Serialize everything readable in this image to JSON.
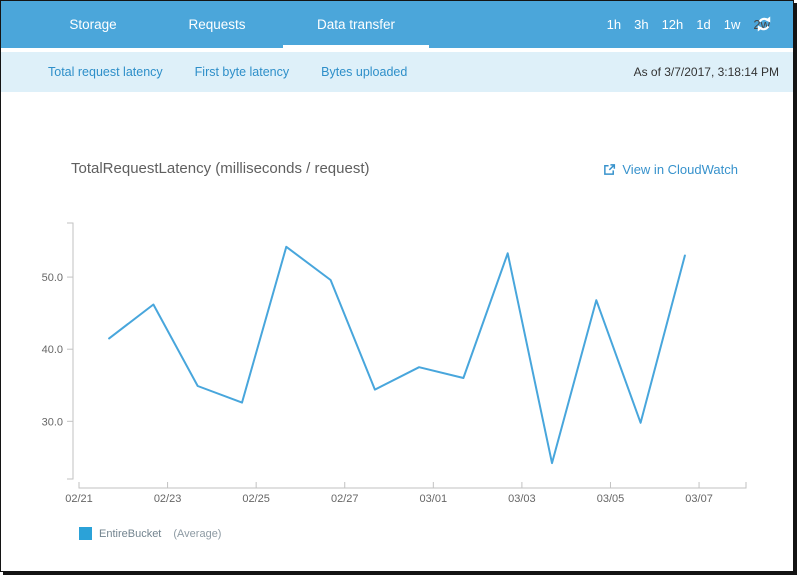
{
  "header": {
    "tabs": [
      {
        "label": "Storage",
        "active": false
      },
      {
        "label": "Requests",
        "active": false
      },
      {
        "label": "Data transfer",
        "active": true
      }
    ],
    "time_ranges": [
      {
        "label": "1h",
        "active": false
      },
      {
        "label": "3h",
        "active": false
      },
      {
        "label": "12h",
        "active": false
      },
      {
        "label": "1d",
        "active": false
      },
      {
        "label": "1w",
        "active": false
      },
      {
        "label": "2w",
        "active": true
      }
    ],
    "refresh_icon": "refresh-icon"
  },
  "subnav": {
    "links": [
      "Total request latency",
      "First byte latency",
      "Bytes uploaded"
    ],
    "as_of": "As of 3/7/2017, 3:18:14 PM"
  },
  "main": {
    "chart_title": "TotalRequestLatency (milliseconds / request)",
    "cloudwatch_link_label": "View in CloudWatch",
    "cloudwatch_icon": "external-link-icon"
  },
  "colors": {
    "header_blue": "#4ba6da",
    "subnav_bg": "#def0f9",
    "link_blue": "#2e8fc9",
    "selected_range_text": "#474747",
    "axis_gray": "#c2c2c2",
    "axis_text": "#666666"
  },
  "chart_data": {
    "type": "line",
    "title": "TotalRequestLatency (milliseconds / request)",
    "xlabel": "",
    "ylabel": "milliseconds / request",
    "grid": false,
    "legend_position": "bottom-left",
    "ylim": [
      22,
      57.5
    ],
    "xlim_days": [
      0,
      15.06
    ],
    "y_ticks": [
      {
        "label": "50.0",
        "value": 50
      },
      {
        "label": "40.0",
        "value": 40
      },
      {
        "label": "30.0",
        "value": 30
      }
    ],
    "x_ticks": [
      {
        "label": "02/21",
        "day": 0
      },
      {
        "label": "02/23",
        "day": 2
      },
      {
        "label": "02/25",
        "day": 4
      },
      {
        "label": "02/27",
        "day": 6
      },
      {
        "label": "03/01",
        "day": 8
      },
      {
        "label": "03/03",
        "day": 10
      },
      {
        "label": "03/05",
        "day": 12
      },
      {
        "label": "03/07",
        "day": 14
      }
    ],
    "series": [
      {
        "name": "EntireBucket",
        "stat_label": "(Average)",
        "color": "#48a6dc",
        "swatch_color": "#2ba2d8",
        "points": [
          {
            "date": "02/21",
            "day": 0.68,
            "value": 41.5
          },
          {
            "date": "02/22",
            "day": 1.68,
            "value": 46.2
          },
          {
            "date": "02/23",
            "day": 2.68,
            "value": 34.9
          },
          {
            "date": "02/24",
            "day": 3.68,
            "value": 32.6
          },
          {
            "date": "02/25",
            "day": 4.68,
            "value": 54.2
          },
          {
            "date": "02/26",
            "day": 5.68,
            "value": 49.6
          },
          {
            "date": "02/27",
            "day": 6.68,
            "value": 34.4
          },
          {
            "date": "02/28",
            "day": 7.68,
            "value": 37.5
          },
          {
            "date": "03/01",
            "day": 8.68,
            "value": 36.0
          },
          {
            "date": "03/02",
            "day": 9.68,
            "value": 53.3
          },
          {
            "date": "03/03",
            "day": 10.68,
            "value": 24.2
          },
          {
            "date": "03/04",
            "day": 11.68,
            "value": 46.8
          },
          {
            "date": "03/05",
            "day": 12.68,
            "value": 29.8
          },
          {
            "date": "03/06",
            "day": 13.68,
            "value": 53.0
          }
        ]
      }
    ]
  }
}
